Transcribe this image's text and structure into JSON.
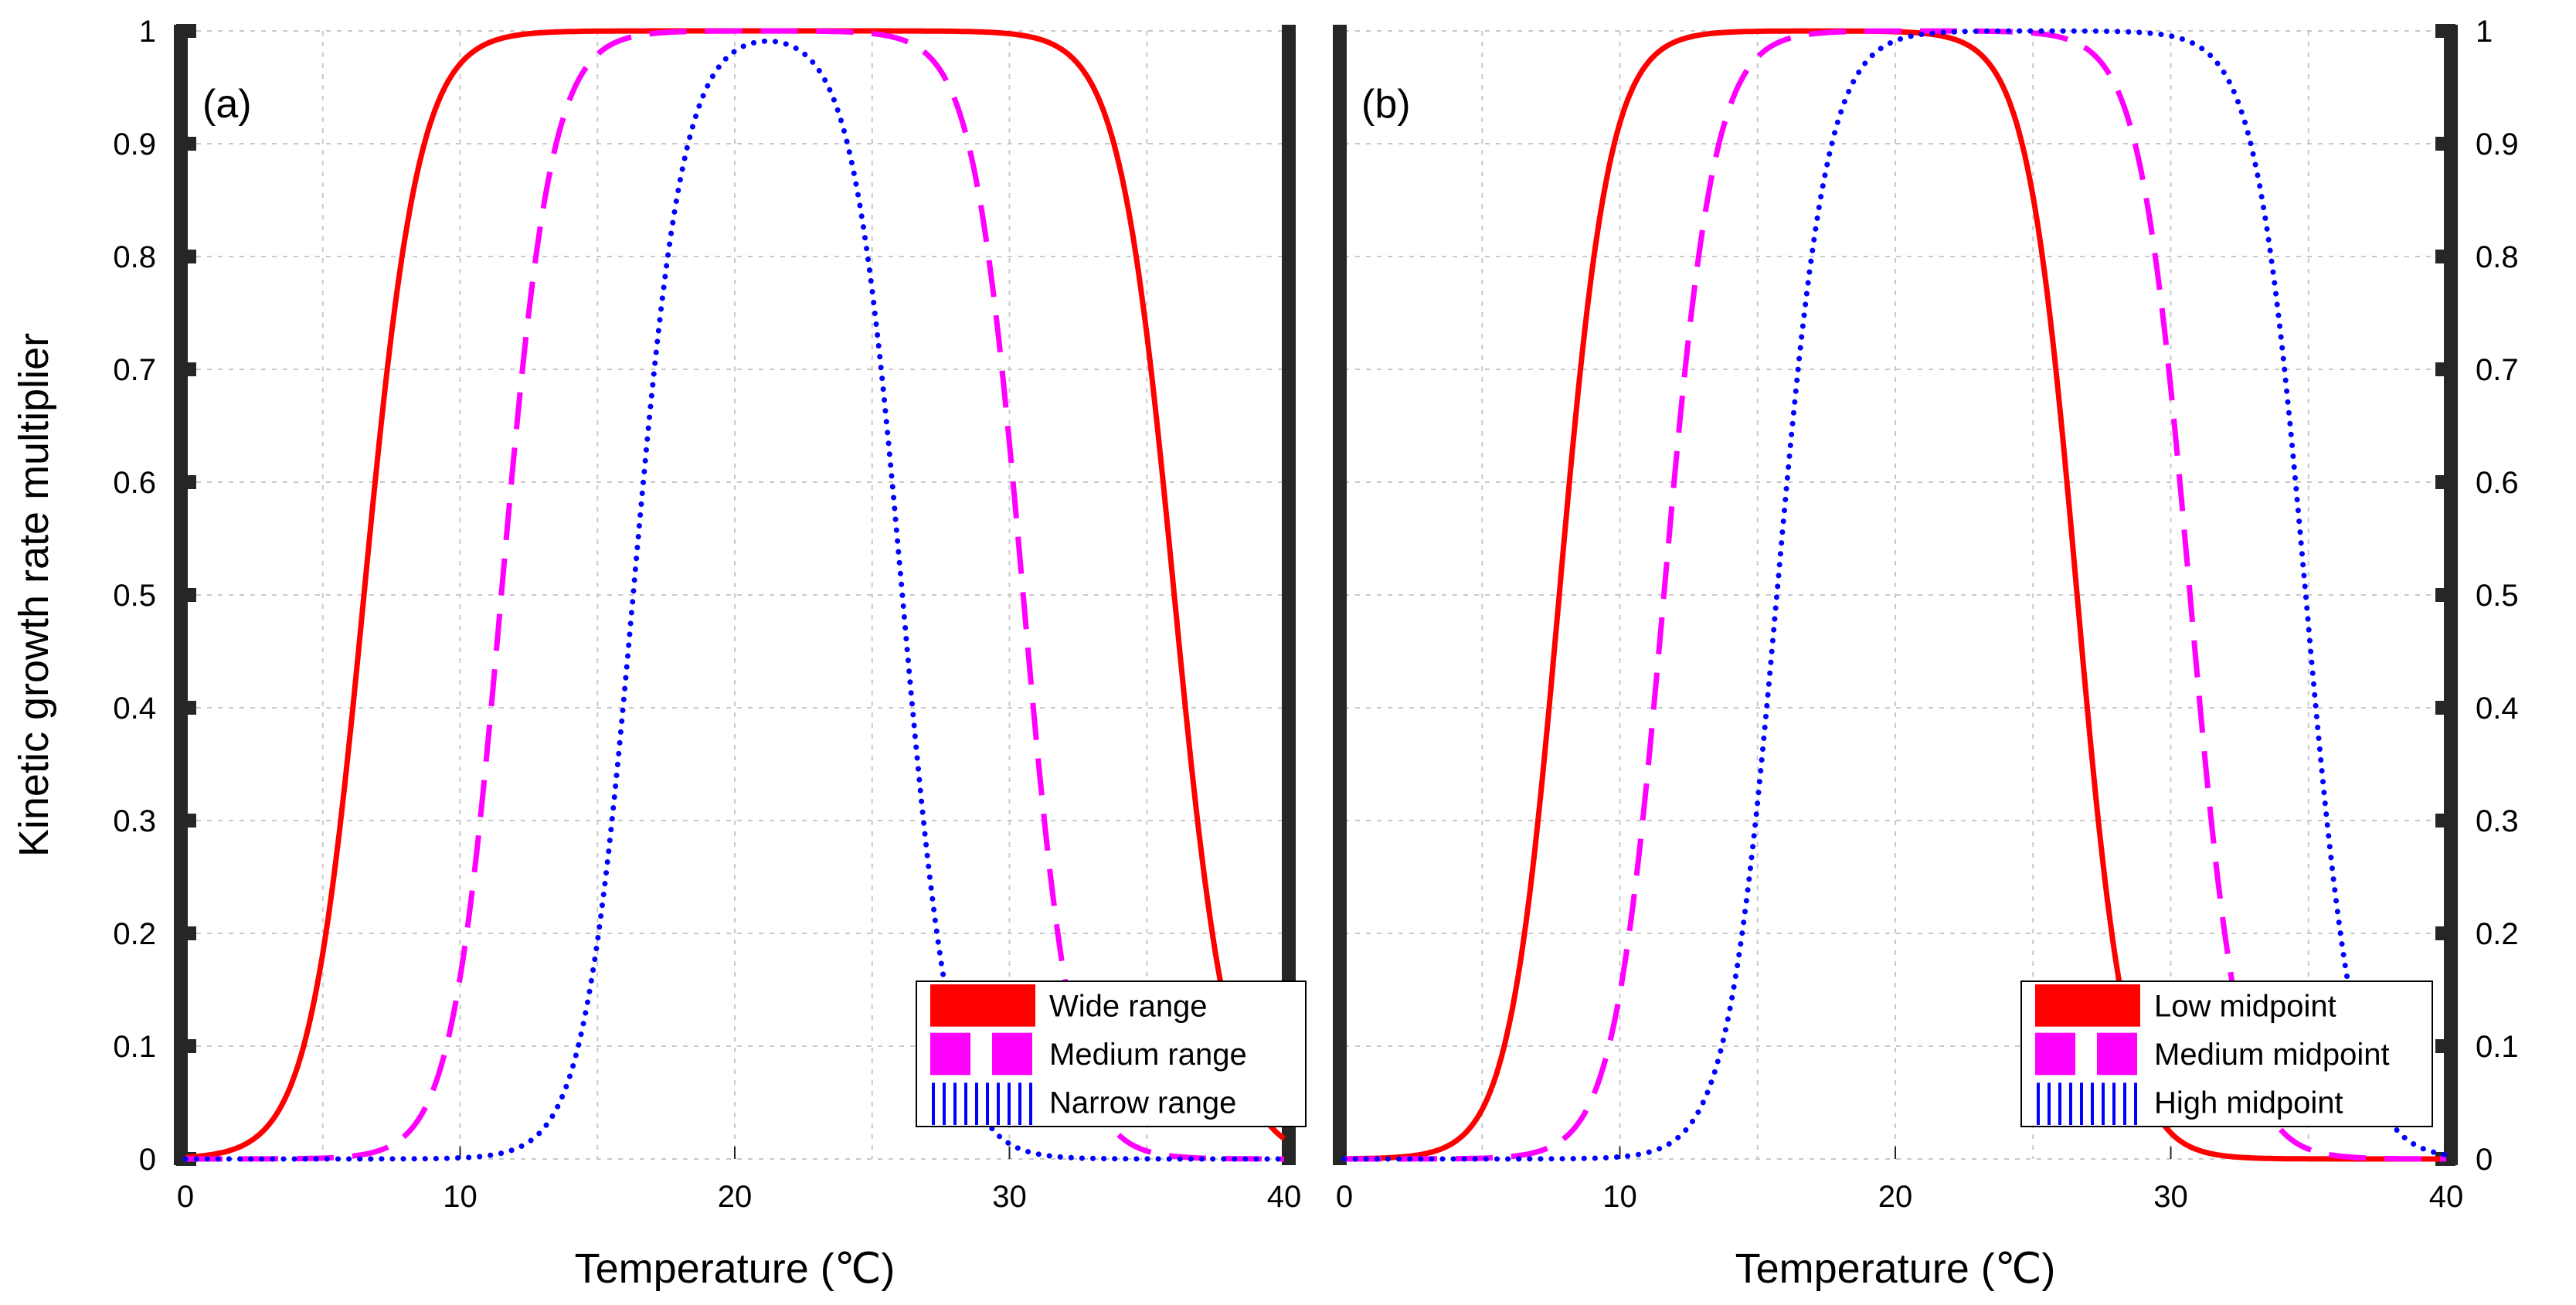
{
  "colors": {
    "wide_low": "#ff0000",
    "medium": "#ff00ff",
    "narrow_high": "#0000ff",
    "axis": "#262626",
    "grid": "#c8c8c8"
  },
  "chart_data": [
    {
      "type": "line",
      "panel_label": "(a)",
      "xlabel": "Temperature (℃)",
      "ylabel": "Kinetic growth rate multiplier",
      "xlim": [
        0,
        40
      ],
      "ylim": [
        0,
        1
      ],
      "xticks": [
        0,
        10,
        20,
        30,
        40
      ],
      "xtick_labels": [
        "0",
        "10",
        "20",
        "30",
        "40"
      ],
      "yticks": [
        0,
        0.1,
        0.2,
        0.3,
        0.4,
        0.5,
        0.6,
        0.7,
        0.8,
        0.9,
        1
      ],
      "ytick_labels": [
        "0",
        "0.1",
        "0.2",
        "0.3",
        "0.4",
        "0.5",
        "0.6",
        "0.7",
        "0.8",
        "0.9",
        "1"
      ],
      "grid": true,
      "legend_position": "bottom-right",
      "series": [
        {
          "name": "Wide range",
          "color_key": "wide_low",
          "style": "solid",
          "rise_mid": 6.5,
          "rise_k": 1.0,
          "fall_mid": 36.0,
          "fall_k": 1.0
        },
        {
          "name": "Medium range",
          "color_key": "medium",
          "style": "dashed",
          "rise_mid": 11.5,
          "rise_k": 1.1,
          "fall_mid": 30.5,
          "fall_k": 1.1
        },
        {
          "name": "Narrow range",
          "color_key": "narrow_high",
          "style": "dotted",
          "rise_mid": 16.3,
          "rise_k": 1.1,
          "fall_mid": 26.1,
          "fall_k": 1.1
        }
      ]
    },
    {
      "type": "line",
      "panel_label": "(b)",
      "xlabel": "Temperature (℃)",
      "ylabel": "",
      "xlim": [
        0,
        40
      ],
      "ylim": [
        0,
        1
      ],
      "xticks": [
        0,
        10,
        20,
        30,
        40
      ],
      "xtick_labels": [
        "0",
        "10",
        "20",
        "30",
        "40"
      ],
      "yticks": [
        0,
        0.1,
        0.2,
        0.3,
        0.4,
        0.5,
        0.6,
        0.7,
        0.8,
        0.9,
        1
      ],
      "ytick_labels": [
        "0",
        "0.1",
        "0.2",
        "0.3",
        "0.4",
        "0.5",
        "0.6",
        "0.7",
        "0.8",
        "0.9",
        "1"
      ],
      "grid": true,
      "legend_position": "bottom-right",
      "series": [
        {
          "name": "Low midpoint",
          "color_key": "wide_low",
          "style": "solid",
          "rise_mid": 7.8,
          "rise_k": 1.1,
          "fall_mid": 26.6,
          "fall_k": 1.1
        },
        {
          "name": "Medium midpoint",
          "color_key": "medium",
          "style": "dashed",
          "rise_mid": 11.6,
          "rise_k": 1.1,
          "fall_mid": 30.7,
          "fall_k": 1.1
        },
        {
          "name": "High midpoint",
          "color_key": "narrow_high",
          "style": "dotted",
          "rise_mid": 15.7,
          "rise_k": 1.1,
          "fall_mid": 34.9,
          "fall_k": 1.1
        }
      ]
    }
  ]
}
